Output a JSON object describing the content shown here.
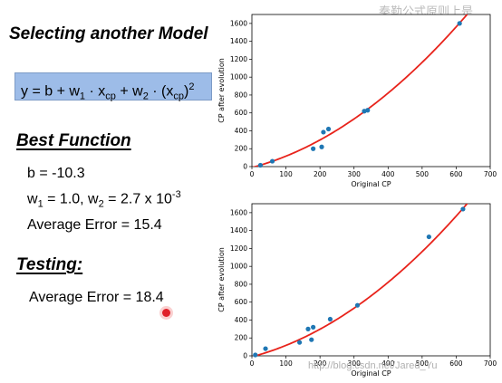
{
  "slide": {
    "title": "Selecting another Model",
    "formula": {
      "base": "y = b + w",
      "s1": "1",
      "mid1": " · x",
      "s2": "cp",
      "mid2": " + w",
      "s3": "2",
      "mid3": " · (x",
      "s4": "cp",
      "close": ")",
      "sup": "2"
    },
    "best_heading": "Best Function",
    "b_line": "b = -10.3",
    "w_line": {
      "p1": "w",
      "s1": "1",
      "p2": " = 1.0, w",
      "s2": "2",
      "p3": " = 2.7 x 10",
      "sup": "-3"
    },
    "avg_error_line": "Average Error = 15.4",
    "testing_heading": "Testing:",
    "test_error_line": "Average Error = 18.4",
    "watermark_top": "秦勒公式原则上是",
    "watermark_bottom": "http://blog.csdn.net/Jared_Yu"
  },
  "colors": {
    "point": "#1f77b4",
    "curve": "#e8231b",
    "formula_bg": "#9dbce8"
  },
  "chart_data": [
    {
      "type": "scatter",
      "xlabel": "Original CP",
      "ylabel": "CP after evolution",
      "xlim": [
        0,
        700
      ],
      "ylim": [
        0,
        1700
      ],
      "xticks": [
        0,
        100,
        200,
        300,
        400,
        500,
        600,
        700
      ],
      "yticks": [
        0,
        200,
        400,
        600,
        800,
        1000,
        1200,
        1400,
        1600
      ],
      "points": [
        [
          25,
          15
        ],
        [
          60,
          60
        ],
        [
          180,
          200
        ],
        [
          205,
          220
        ],
        [
          210,
          385
        ],
        [
          225,
          420
        ],
        [
          330,
          620
        ],
        [
          340,
          630
        ],
        [
          610,
          1600
        ]
      ],
      "curve": {
        "b": -10.3,
        "w1": 1.0,
        "w2": 0.0027
      }
    },
    {
      "type": "scatter",
      "xlabel": "Original CP",
      "ylabel": "CP after evolution",
      "xlim": [
        0,
        700
      ],
      "ylim": [
        0,
        1700
      ],
      "xticks": [
        0,
        100,
        200,
        300,
        400,
        500,
        600,
        700
      ],
      "yticks": [
        0,
        200,
        400,
        600,
        800,
        1000,
        1200,
        1400,
        1600
      ],
      "points": [
        [
          10,
          10
        ],
        [
          40,
          80
        ],
        [
          140,
          150
        ],
        [
          165,
          300
        ],
        [
          175,
          180
        ],
        [
          180,
          320
        ],
        [
          230,
          410
        ],
        [
          310,
          565
        ],
        [
          520,
          1330
        ],
        [
          620,
          1640
        ]
      ],
      "curve": {
        "b": -10.3,
        "w1": 1.0,
        "w2": 0.0027
      }
    }
  ]
}
